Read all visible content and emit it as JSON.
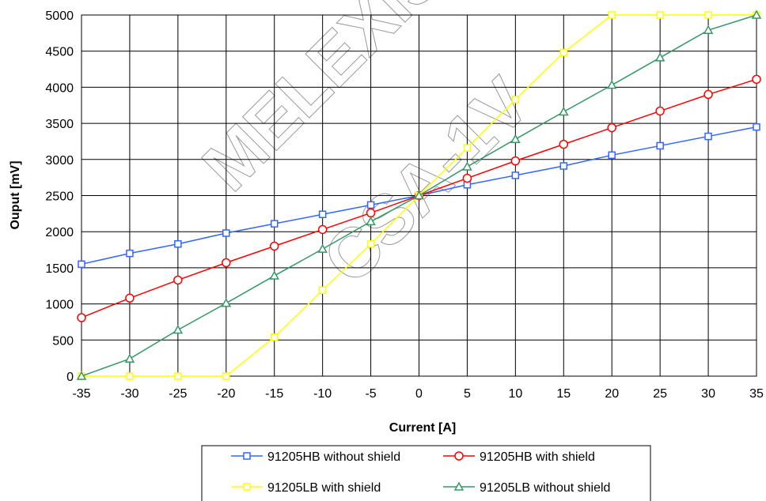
{
  "chart_data": {
    "type": "line",
    "title": "",
    "xlabel": "Current [A]",
    "ylabel": "Ouput [mV]",
    "xlim": [
      -35,
      35
    ],
    "ylim": [
      0,
      5000
    ],
    "x": [
      -35,
      -30,
      -25,
      -20,
      -15,
      -10,
      -5,
      0,
      5,
      10,
      15,
      20,
      25,
      30,
      35
    ],
    "x_ticks": [
      "-35",
      "-30",
      "-25",
      "-20",
      "-15",
      "-10",
      "-5",
      "0",
      "5",
      "10",
      "15",
      "20",
      "25",
      "30",
      "35"
    ],
    "y_ticks": [
      "0",
      "500",
      "1000",
      "1500",
      "2000",
      "2500",
      "3000",
      "3500",
      "4000",
      "4500",
      "5000"
    ],
    "grid": true,
    "legend_position": "bottom",
    "series": [
      {
        "name": "91205HB without shield",
        "color": "#3366ff",
        "marker": "square",
        "values": [
          1550,
          1700,
          1830,
          1980,
          2110,
          2240,
          2370,
          2500,
          2650,
          2780,
          2910,
          3060,
          3190,
          3320,
          3450
        ]
      },
      {
        "name": "91205HB with shield",
        "color": "#ff0000",
        "marker": "circle",
        "values": [
          810,
          1080,
          1330,
          1570,
          1800,
          2030,
          2260,
          2500,
          2740,
          2980,
          3210,
          3440,
          3670,
          3900,
          4110
        ]
      },
      {
        "name": "91205LB with shield",
        "color": "#ffff00",
        "marker": "square",
        "values": [
          0,
          0,
          0,
          0,
          540,
          1190,
          1830,
          2500,
          3160,
          3830,
          4480,
          5000,
          5000,
          5000,
          5000
        ]
      },
      {
        "name": "91205LB without shield",
        "color": "#339966",
        "marker": "triangle",
        "values": [
          0,
          240,
          640,
          1010,
          1390,
          1760,
          2140,
          2500,
          2900,
          3280,
          3660,
          4030,
          4410,
          4790,
          5000
        ]
      }
    ],
    "watermark": [
      "MELEXIS",
      "CSA-1V"
    ]
  }
}
